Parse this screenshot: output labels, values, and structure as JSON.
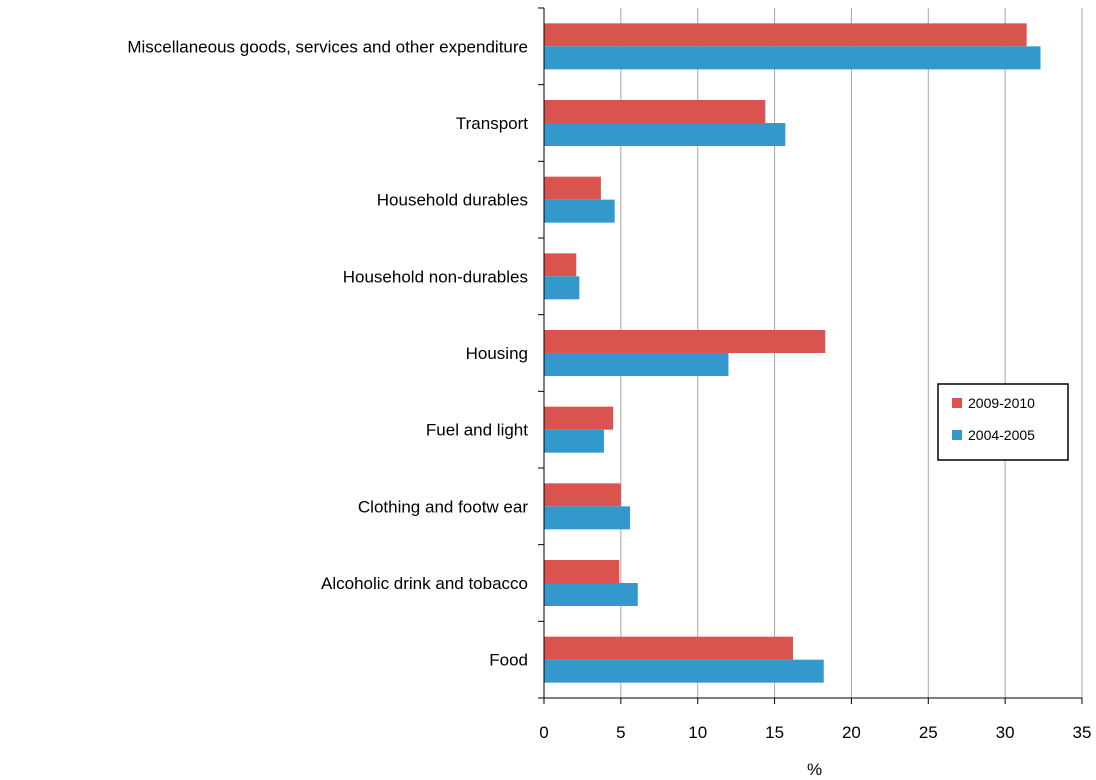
{
  "chart_data": {
    "type": "bar",
    "orientation": "horizontal",
    "categories": [
      "Food",
      "Alcoholic drink and tobacco",
      "Clothing and footw ear",
      "Fuel and light",
      "Housing",
      "Household non-durables",
      "Household durables",
      "Transport",
      "Miscellaneous goods, services and other expenditure"
    ],
    "series": [
      {
        "name": "2009-2010",
        "color": "#d9534f",
        "values": [
          16.2,
          4.9,
          5.0,
          4.5,
          18.3,
          2.1,
          3.7,
          14.4,
          31.4
        ]
      },
      {
        "name": "2004-2005",
        "color": "#3399cc",
        "values": [
          18.2,
          6.1,
          5.6,
          3.9,
          12.0,
          2.3,
          4.6,
          15.7,
          32.3
        ]
      }
    ],
    "xlabel": "%",
    "ylabel": "",
    "xlim": [
      0,
      35
    ],
    "xticks": [
      0,
      5,
      10,
      15,
      20,
      25,
      30,
      35
    ],
    "grid": "vertical",
    "legend_position": "right"
  }
}
